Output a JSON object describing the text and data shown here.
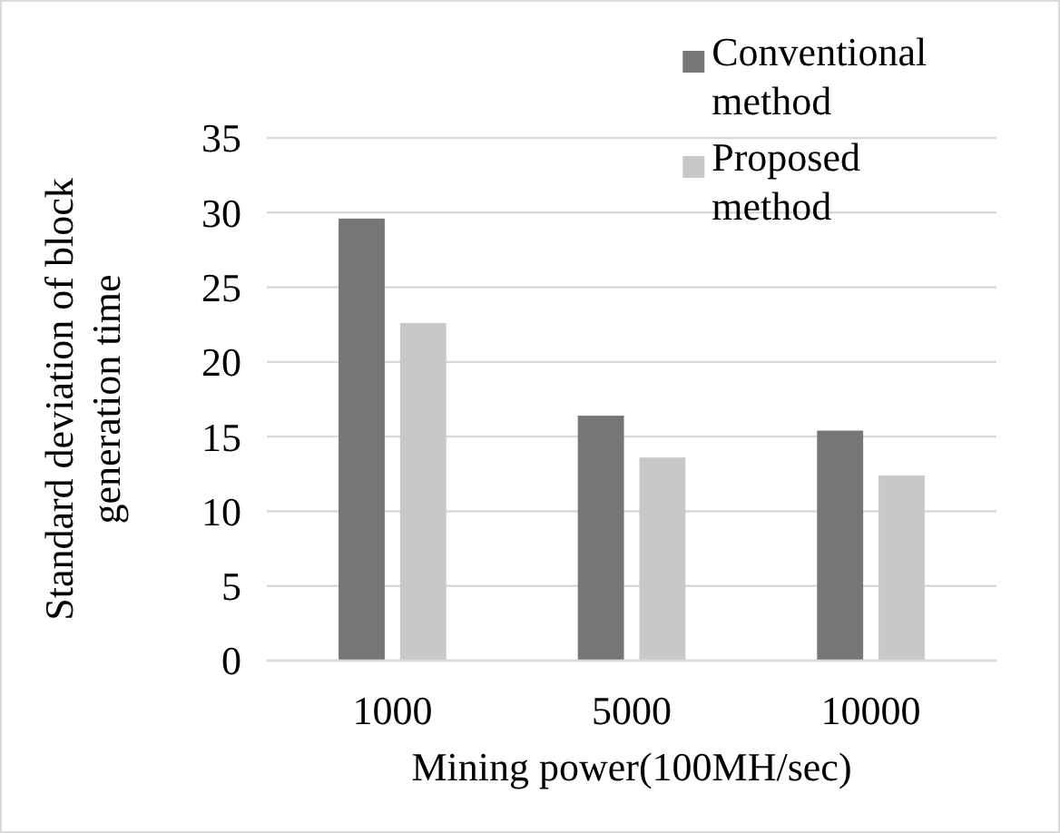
{
  "chart_data": {
    "type": "bar",
    "xlabel": "Mining power(100MH/sec)",
    "ylabel": "Standard deviation of block generation time",
    "categories": [
      "1000",
      "5000",
      "10000"
    ],
    "series": [
      {
        "name": "Conventional method",
        "color": "#767676",
        "values": [
          29.6,
          16.4,
          15.4
        ]
      },
      {
        "name": "Proposed method",
        "color": "#c8c8c8",
        "values": [
          22.6,
          13.6,
          12.4
        ]
      }
    ],
    "ylim": [
      0,
      35
    ],
    "yticks": [
      0,
      5,
      10,
      15,
      20,
      25,
      30,
      35
    ],
    "grid": "y",
    "legend": "top right"
  }
}
